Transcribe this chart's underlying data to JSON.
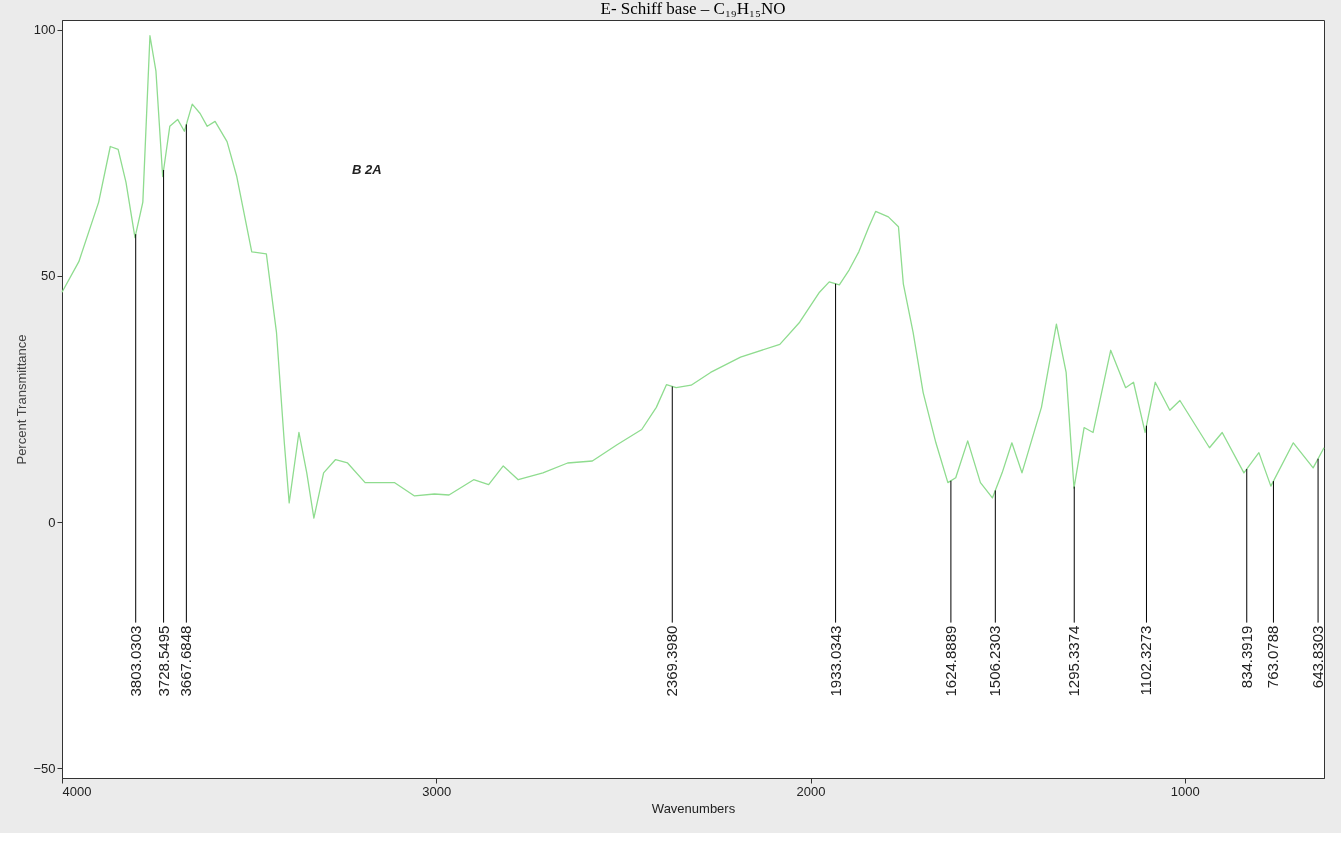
{
  "chart_data": {
    "type": "line",
    "title": "E- Schiff base – C₁₉H₁₅NO",
    "xlabel": "Wavenumbers",
    "ylabel": "Percent Transmittance",
    "xlim": [
      4000,
      628
    ],
    "ylim": [
      -52,
      102
    ],
    "xticks": [
      4000,
      3000,
      2000,
      1000
    ],
    "yticks": [
      -50,
      0,
      50,
      100
    ],
    "grid": false,
    "x": [
      4000,
      3955,
      3902,
      3871,
      3850,
      3829,
      3805,
      3784,
      3765,
      3749,
      3731,
      3712,
      3691,
      3673,
      3652,
      3631,
      3612,
      3591,
      3559,
      3533,
      3493,
      3454,
      3427,
      3406,
      3393,
      3367,
      3346,
      3327,
      3301,
      3269,
      3237,
      3190,
      3111,
      3058,
      3005,
      2966,
      2900,
      2860,
      2821,
      2781,
      2715,
      2649,
      2583,
      2517,
      2451,
      2412,
      2385,
      2359,
      2319,
      2267,
      2187,
      2082,
      2029,
      1976,
      1950,
      1923,
      1897,
      1871,
      1844,
      1826,
      1792,
      1765,
      1752,
      1726,
      1699,
      1665,
      1633,
      1612,
      1580,
      1546,
      1514,
      1488,
      1462,
      1435,
      1383,
      1343,
      1317,
      1296,
      1269,
      1245,
      1198,
      1158,
      1137,
      1106,
      1079,
      1040,
      1013,
      934,
      900,
      842,
      802,
      770,
      710,
      657,
      628
    ],
    "series": [
      {
        "color": "#8fdc8f",
        "values": [
          46.7,
          52.9,
          65,
          76.3,
          75.7,
          69,
          57.8,
          65,
          98.8,
          91.6,
          70.2,
          80.4,
          81.8,
          79.4,
          84.9,
          83,
          80.4,
          81.4,
          77.3,
          70.2,
          54.9,
          54.5,
          38.6,
          16.1,
          3.9,
          18.2,
          10,
          0.8,
          10,
          12.7,
          12,
          8,
          8,
          5.3,
          5.7,
          5.5,
          8.6,
          7.6,
          11.4,
          8.6,
          10,
          12,
          12.4,
          15.7,
          18.8,
          23.3,
          27.9,
          27.3,
          27.8,
          30.4,
          33.5,
          36.1,
          40.6,
          46.7,
          48.8,
          48.2,
          51.2,
          54.9,
          60,
          63.1,
          62,
          60,
          48.4,
          38.6,
          26.3,
          16.1,
          8,
          9,
          16.5,
          8,
          4.9,
          10,
          16.1,
          10,
          23.3,
          40.2,
          30.4,
          6.9,
          19.2,
          18.2,
          34.9,
          27.3,
          28.4,
          18.2,
          28.4,
          22.7,
          24.7,
          15.1,
          18.2,
          10,
          14.1,
          7.3,
          16.1,
          11,
          15.1
        ]
      }
    ],
    "annotations": [
      "B 2A"
    ],
    "ref_lines": [
      {
        "axis": "x",
        "value": 3803.0303,
        "label": "3803.0303"
      },
      {
        "axis": "x",
        "value": 3728.5495,
        "label": "3728.5495"
      },
      {
        "axis": "x",
        "value": 3667.6848,
        "label": "3667.6848"
      },
      {
        "axis": "x",
        "value": 2369.398,
        "label": "2369.3980"
      },
      {
        "axis": "x",
        "value": 1933.0343,
        "label": "1933.0343"
      },
      {
        "axis": "x",
        "value": 1624.8889,
        "label": "1624.8889"
      },
      {
        "axis": "x",
        "value": 1506.2303,
        "label": "1506.2303"
      },
      {
        "axis": "x",
        "value": 1295.3374,
        "label": "1295.3374"
      },
      {
        "axis": "x",
        "value": 1102.3273,
        "label": "1102.3273"
      },
      {
        "axis": "x",
        "value": 834.3919,
        "label": "834.3919"
      },
      {
        "axis": "x",
        "value": 763.0788,
        "label": "763.0788"
      },
      {
        "axis": "x",
        "value": 643.8303,
        "label": "643.8303"
      }
    ]
  }
}
